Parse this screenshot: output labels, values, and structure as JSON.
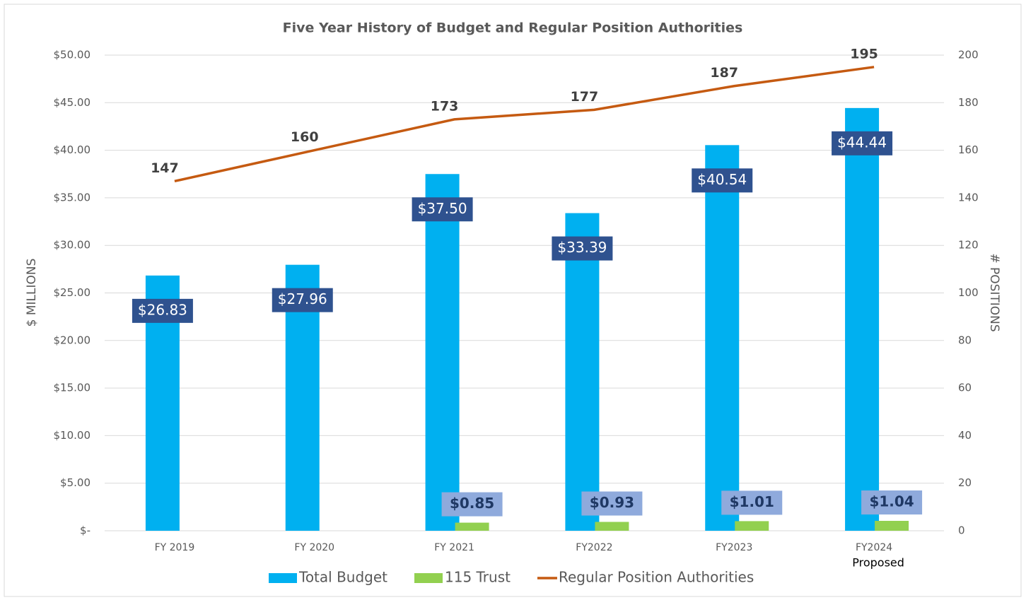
{
  "chart_data": {
    "type": "bar",
    "title": "Five Year History of Budget and Regular Position Authorities",
    "categories": [
      "FY 2019",
      "FY 2020",
      "FY 2021",
      "FY2022",
      "FY2023",
      "FY2024"
    ],
    "annotation": "Proposed",
    "y_label": "$ MILLIONS",
    "y2_label": "# POSITIONS",
    "series": [
      {
        "name": "Total Budget",
        "type": "bar",
        "color": "#00b0f0",
        "values": [
          26.83,
          27.96,
          37.5,
          33.39,
          40.54,
          44.44
        ],
        "value_labels": [
          "$26.83",
          "$27.96",
          "$37.50",
          "$33.39",
          "$40.54",
          "$44.44"
        ]
      },
      {
        "name": "115 Trust",
        "type": "bar",
        "color": "#92d050",
        "values": [
          null,
          null,
          0.85,
          0.93,
          1.01,
          1.04
        ],
        "value_labels": [
          null,
          null,
          "$0.85",
          "$0.93",
          "$1.01",
          "$1.04"
        ]
      },
      {
        "name": "Regular Position Authorities",
        "type": "line",
        "axis": "y2",
        "color": "#c55a11",
        "values": [
          147,
          160,
          173,
          177,
          187,
          195
        ]
      }
    ],
    "ylim": [
      0,
      50
    ],
    "yticks": [
      {
        "value": 0,
        "label": "$-"
      },
      {
        "value": 5,
        "label": "$5.00"
      },
      {
        "value": 10,
        "label": "$10.00"
      },
      {
        "value": 15,
        "label": "$15.00"
      },
      {
        "value": 20,
        "label": "$20.00"
      },
      {
        "value": 25,
        "label": "$25.00"
      },
      {
        "value": 30,
        "label": "$30.00"
      },
      {
        "value": 35,
        "label": "$35.00"
      },
      {
        "value": 40,
        "label": "$40.00"
      },
      {
        "value": 45,
        "label": "$45.00"
      },
      {
        "value": 50,
        "label": "$50.00"
      }
    ],
    "y2lim": [
      0,
      200
    ],
    "y2ticks": [
      0,
      20,
      40,
      60,
      80,
      100,
      120,
      140,
      160,
      180,
      200
    ],
    "grid": true,
    "legend": "bottom"
  }
}
